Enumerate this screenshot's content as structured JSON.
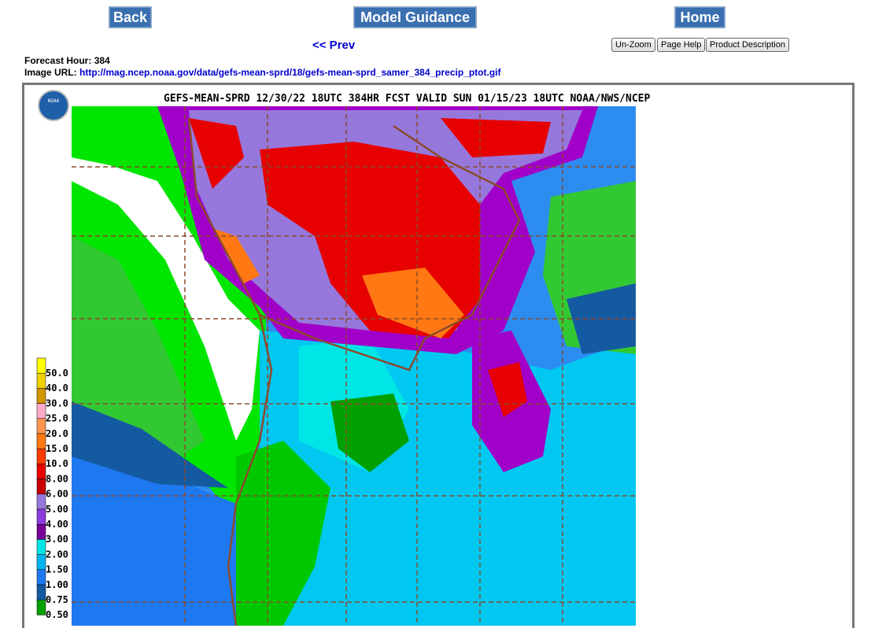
{
  "nav": {
    "back": "Back",
    "model_guidance": "Model Guidance",
    "home": "Home",
    "prev": "<< Prev",
    "buttons": [
      "Un-Zoom",
      "Page Help",
      "Product Description"
    ]
  },
  "info": {
    "forecast_hour_label": "Forecast Hour:",
    "forecast_hour": 384,
    "image_url_label": "Image URL:",
    "image_url": "http://mag.ncep.noaa.gov/data/gefs-mean-sprd/18/gefs-mean-sprd_samer_384_precip_ptot.gif"
  },
  "map": {
    "title": "GEFS-MEAN-SPRD 12/30/22 18UTC 384HR FCST VALID SUN 01/15/23 18UTC NOAA/NWS/NCEP",
    "logo": "NOAA",
    "legend": [
      {
        "label": "50.0",
        "color": "#ffff00"
      },
      {
        "label": "40.0",
        "color": "#f0d200"
      },
      {
        "label": "30.0",
        "color": "#d29600"
      },
      {
        "label": "25.0",
        "color": "#ffaac8"
      },
      {
        "label": "20.0",
        "color": "#ff9650"
      },
      {
        "label": "15.0",
        "color": "#ff7814"
      },
      {
        "label": "10.0",
        "color": "#ff3c00"
      },
      {
        "label": "8.00",
        "color": "#e60000"
      },
      {
        "label": "6.00",
        "color": "#c80000"
      },
      {
        "label": "5.00",
        "color": "#9678dc"
      },
      {
        "label": "4.00",
        "color": "#8c3cdc"
      },
      {
        "label": "3.00",
        "color": "#780096"
      },
      {
        "label": "2.00",
        "color": "#00e6e6"
      },
      {
        "label": "1.50",
        "color": "#00b4f0"
      },
      {
        "label": "1.00",
        "color": "#1e78f0"
      },
      {
        "label": "0.75",
        "color": "#145aa0"
      },
      {
        "label": "0.50",
        "color": "#00a000"
      }
    ]
  }
}
